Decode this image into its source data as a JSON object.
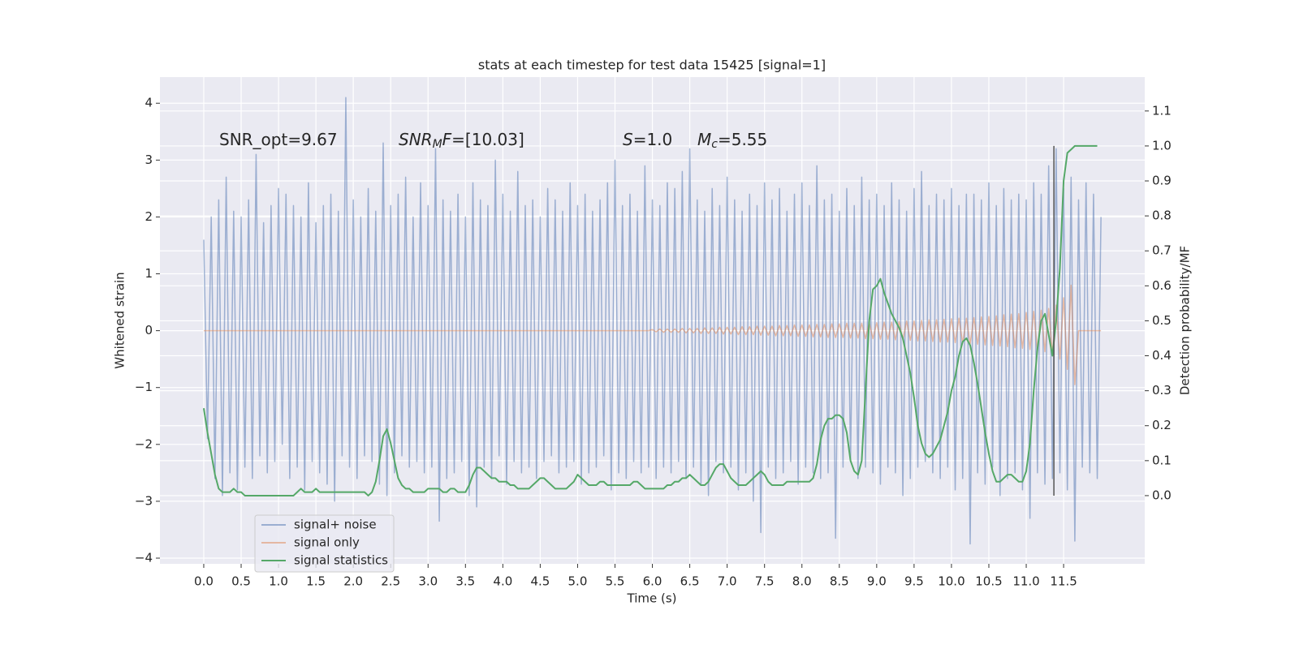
{
  "chart_data": {
    "type": "line",
    "title": "stats at each timestep for test data 15425 [signal=1]",
    "x_label": "Time (s)",
    "y_label": "Whitened strain",
    "y2_label": "Detection probability/MF",
    "xlim": [
      -0.586,
      12.585
    ],
    "ylim": [
      -4.1,
      4.46
    ],
    "y2lim": [
      -0.195,
      1.197
    ],
    "xticks": [
      {
        "value": 0,
        "label": "0.0"
      },
      0.5,
      {
        "value": 1,
        "label": "1.0"
      },
      1.5,
      {
        "value": 2,
        "label": "2.0"
      },
      2.5,
      {
        "value": 3,
        "label": "3.0"
      },
      3.5,
      {
        "value": 4,
        "label": "4.0"
      },
      4.5,
      {
        "value": 5,
        "label": "5.0"
      },
      5.5,
      {
        "value": 6,
        "label": "6.0"
      },
      6.5,
      {
        "value": 7,
        "label": "7.0"
      },
      7.5,
      {
        "value": 8,
        "label": "8.0"
      },
      8.5,
      {
        "value": 9,
        "label": "9.0"
      },
      9.5,
      {
        "value": 10,
        "label": "10.0"
      },
      10.5,
      {
        "value": 11,
        "label": "11.0"
      },
      11.5
    ],
    "yticks": [
      {
        "value": -4,
        "label": "−4"
      },
      {
        "value": -3,
        "label": "−3"
      },
      {
        "value": -2,
        "label": "−2"
      },
      {
        "value": -1,
        "label": "−1"
      },
      0,
      1,
      2,
      3,
      4
    ],
    "y2ticks": [
      {
        "value": 0,
        "label": "0.0"
      },
      0.1,
      0.2,
      0.3,
      0.4,
      0.5,
      0.6,
      0.7,
      0.8,
      0.9,
      {
        "value": 1,
        "label": "1.0"
      },
      1.1
    ],
    "grid": true,
    "legend_position": "lower left",
    "annotations": [
      [
        {
          "text": "SNR_opt=9.67"
        }
      ],
      [
        {
          "text": "SNR",
          "italic": true
        },
        {
          "text": "M",
          "italic": true,
          "sub": true
        },
        {
          "text": "F",
          "italic": true
        },
        {
          "text": "=[10.03]"
        }
      ],
      [
        {
          "text": "S",
          "italic": true
        },
        {
          "text": "=1.0"
        }
      ],
      [
        {
          "text": "M",
          "italic": true
        },
        {
          "text": "c",
          "italic": true,
          "sub": true
        },
        {
          "text": "=5.55"
        }
      ]
    ],
    "vline": {
      "x": 11.37,
      "ymin": 0,
      "ymax": 1,
      "axis": "y2",
      "color": "#555555"
    },
    "x": [
      0,
      0.05,
      0.1,
      0.15,
      0.2,
      0.25,
      0.3,
      0.35,
      0.4,
      0.45,
      0.5,
      0.55,
      0.6,
      0.65,
      0.7,
      0.75,
      0.8,
      0.85,
      0.9,
      0.95,
      1,
      1.05,
      1.1,
      1.15,
      1.2,
      1.25,
      1.3,
      1.35,
      1.4,
      1.45,
      1.5,
      1.55,
      1.6,
      1.65,
      1.7,
      1.75,
      1.8,
      1.85,
      1.9,
      1.95,
      2,
      2.05,
      2.1,
      2.15,
      2.2,
      2.25,
      2.3,
      2.35,
      2.4,
      2.45,
      2.5,
      2.55,
      2.6,
      2.65,
      2.7,
      2.75,
      2.8,
      2.85,
      2.9,
      2.95,
      3,
      3.05,
      3.1,
      3.15,
      3.2,
      3.25,
      3.3,
      3.35,
      3.4,
      3.45,
      3.5,
      3.55,
      3.6,
      3.65,
      3.7,
      3.75,
      3.8,
      3.85,
      3.9,
      3.95,
      4,
      4.05,
      4.1,
      4.15,
      4.2,
      4.25,
      4.3,
      4.35,
      4.4,
      4.45,
      4.5,
      4.55,
      4.6,
      4.65,
      4.7,
      4.75,
      4.8,
      4.85,
      4.9,
      4.95,
      5,
      5.05,
      5.1,
      5.15,
      5.2,
      5.25,
      5.3,
      5.35,
      5.4,
      5.45,
      5.5,
      5.55,
      5.6,
      5.65,
      5.7,
      5.75,
      5.8,
      5.85,
      5.9,
      5.95,
      6,
      6.05,
      6.1,
      6.15,
      6.2,
      6.25,
      6.3,
      6.35,
      6.4,
      6.45,
      6.5,
      6.55,
      6.6,
      6.65,
      6.7,
      6.75,
      6.8,
      6.85,
      6.9,
      6.95,
      7,
      7.05,
      7.1,
      7.15,
      7.2,
      7.25,
      7.3,
      7.35,
      7.4,
      7.45,
      7.5,
      7.55,
      7.6,
      7.65,
      7.7,
      7.75,
      7.8,
      7.85,
      7.9,
      7.95,
      8,
      8.05,
      8.1,
      8.15,
      8.2,
      8.25,
      8.3,
      8.35,
      8.4,
      8.45,
      8.5,
      8.55,
      8.6,
      8.65,
      8.7,
      8.75,
      8.8,
      8.85,
      8.9,
      8.95,
      9,
      9.05,
      9.1,
      9.15,
      9.2,
      9.25,
      9.3,
      9.35,
      9.4,
      9.45,
      9.5,
      9.55,
      9.6,
      9.65,
      9.7,
      9.75,
      9.8,
      9.85,
      9.9,
      9.95,
      10,
      10.05,
      10.1,
      10.15,
      10.2,
      10.25,
      10.3,
      10.35,
      10.4,
      10.45,
      10.5,
      10.55,
      10.6,
      10.65,
      10.7,
      10.75,
      10.8,
      10.85,
      10.9,
      10.95,
      11,
      11.05,
      11.1,
      11.15,
      11.2,
      11.25,
      11.3,
      11.35,
      11.4,
      11.45,
      11.5,
      11.55,
      11.6,
      11.65,
      11.7,
      11.75,
      11.8,
      11.85,
      11.9,
      11.95,
      12
    ],
    "series": [
      {
        "name": "signal+ noise",
        "color": "#4c72b0",
        "alpha": 0.5,
        "values": [
          1.6,
          -1.9,
          2.0,
          -2.6,
          2.3,
          -2.9,
          2.7,
          -2.5,
          2.1,
          -2.8,
          2.0,
          -2.4,
          2.3,
          -2.6,
          3.1,
          -2.2,
          1.9,
          -2.5,
          2.2,
          -2.3,
          2.5,
          -2.0,
          2.4,
          -2.6,
          2.2,
          -2.4,
          2.0,
          -2.8,
          2.6,
          -2.3,
          1.9,
          -2.5,
          2.2,
          -2.7,
          2.4,
          -3.0,
          2.1,
          -2.2,
          4.1,
          -2.4,
          2.3,
          -2.6,
          2.0,
          -2.2,
          2.5,
          -2.3,
          2.1,
          -2.7,
          3.3,
          -2.9,
          2.2,
          -2.5,
          2.4,
          -2.2,
          2.7,
          -2.4,
          2.0,
          -2.3,
          2.6,
          -2.5,
          2.2,
          -2.4,
          3.2,
          -3.35,
          2.3,
          -2.6,
          2.1,
          -2.5,
          2.4,
          -2.3,
          2.0,
          -2.9,
          2.6,
          -3.1,
          2.3,
          -2.4,
          2.2,
          -2.6,
          3.0,
          -2.2,
          2.4,
          -2.7,
          2.1,
          -2.3,
          2.8,
          -2.5,
          2.2,
          -2.4,
          2.3,
          -2.6,
          2.0,
          -2.3,
          2.5,
          -2.2,
          2.3,
          -2.5,
          2.1,
          -2.4,
          2.6,
          -2.3,
          2.2,
          -2.7,
          2.4,
          -2.5,
          2.1,
          -2.4,
          2.3,
          -2.2,
          2.6,
          -2.8,
          3.0,
          -2.5,
          2.2,
          -2.6,
          2.4,
          -2.3,
          2.1,
          -2.5,
          2.9,
          -2.4,
          2.3,
          -2.6,
          2.2,
          -2.4,
          2.6,
          -2.5,
          2.5,
          -2.3,
          2.8,
          -2.6,
          3.2,
          -2.4,
          2.3,
          -2.7,
          2.1,
          -2.9,
          2.5,
          -2.3,
          2.2,
          -2.5,
          2.7,
          -2.4,
          2.3,
          -2.8,
          2.1,
          -2.5,
          2.4,
          -3.0,
          2.2,
          -3.55,
          2.6,
          -2.4,
          2.3,
          -2.6,
          2.5,
          -2.5,
          2.1,
          -2.3,
          2.4,
          -2.7,
          2.6,
          -2.4,
          2.2,
          -2.5,
          2.9,
          -2.6,
          2.3,
          -2.5,
          2.4,
          -3.65,
          2.1,
          -2.4,
          2.5,
          -2.3,
          2.2,
          -2.6,
          2.7,
          -2.4,
          2.3,
          -2.5,
          2.4,
          -2.7,
          2.2,
          -2.4,
          2.6,
          -2.5,
          2.3,
          -2.9,
          2.1,
          -2.6,
          2.5,
          -2.4,
          2.8,
          -2.3,
          2.2,
          -2.5,
          2.4,
          -2.6,
          2.3,
          -2.4,
          2.5,
          -2.8,
          2.2,
          -2.6,
          2.4,
          -3.75,
          2.4,
          -2.5,
          2.3,
          -2.7,
          2.6,
          -2.4,
          2.2,
          -2.9,
          2.5,
          -2.6,
          2.3,
          -2.5,
          2.4,
          -2.8,
          2.3,
          -3.3,
          2.6,
          -2.5,
          2.4,
          -2.7,
          2.9,
          -2.6,
          3.2,
          -2.5,
          2.5,
          -2.8,
          2.7,
          -3.7,
          2.3,
          -2.4,
          2.6,
          -2.5,
          2.4,
          -2.6,
          2.0
        ]
      },
      {
        "name": "signal only",
        "color": "#dd8452",
        "alpha": 0.5,
        "values": [
          0,
          0,
          0,
          0,
          0,
          0,
          0,
          0,
          0,
          0,
          0,
          0,
          0,
          0,
          0,
          0,
          0,
          0,
          0,
          0,
          0,
          0,
          0,
          0,
          0,
          0,
          0,
          0,
          0,
          0,
          0,
          0,
          0,
          0,
          0,
          0,
          0,
          0,
          0,
          0,
          0,
          0,
          0,
          0,
          0,
          0,
          0,
          0,
          0,
          0,
          0,
          0,
          0,
          0,
          0,
          0,
          0,
          0,
          0,
          0,
          0,
          0,
          0,
          0,
          0,
          0,
          0,
          0,
          0,
          0,
          0,
          0,
          0,
          0,
          0,
          0,
          0,
          0,
          0,
          0,
          0,
          0,
          0,
          0,
          0,
          0,
          0,
          0,
          0,
          0,
          0,
          0,
          0,
          0,
          0,
          0,
          0,
          0,
          0,
          0,
          0,
          0,
          0,
          0,
          0,
          0,
          0,
          0,
          0,
          0,
          0,
          0,
          0,
          0,
          0,
          0,
          0,
          0,
          0,
          0,
          0.02,
          -0.02,
          0.03,
          -0.03,
          0.03,
          -0.03,
          0.03,
          -0.03,
          0.04,
          -0.04,
          0.04,
          -0.04,
          0.04,
          -0.05,
          0.05,
          -0.05,
          0.05,
          -0.05,
          0.06,
          -0.06,
          0.06,
          -0.06,
          0.06,
          -0.07,
          0.07,
          -0.07,
          0.07,
          -0.07,
          0.08,
          -0.08,
          0.08,
          -0.08,
          0.08,
          -0.09,
          0.09,
          -0.09,
          0.09,
          -0.09,
          0.1,
          -0.1,
          0.1,
          -0.1,
          0.1,
          -0.11,
          0.11,
          -0.11,
          0.11,
          -0.12,
          0.12,
          -0.12,
          0.12,
          -0.12,
          0.13,
          -0.13,
          0.13,
          -0.13,
          0.13,
          -0.14,
          0.14,
          -0.14,
          0.14,
          -0.15,
          0.15,
          -0.15,
          0.15,
          -0.16,
          0.16,
          -0.16,
          0.17,
          -0.17,
          0.17,
          -0.18,
          0.18,
          -0.18,
          0.19,
          -0.19,
          0.19,
          -0.2,
          0.2,
          -0.2,
          0.21,
          -0.21,
          0.22,
          -0.22,
          0.22,
          -0.23,
          0.23,
          -0.24,
          0.24,
          -0.25,
          0.25,
          -0.26,
          0.26,
          -0.27,
          0.28,
          -0.28,
          0.29,
          -0.3,
          0.3,
          -0.31,
          0.32,
          -0.33,
          0.34,
          -0.35,
          0.36,
          -0.37,
          0.39,
          -0.42,
          0.45,
          -0.5,
          0.58,
          -0.68,
          0.8,
          -0.95,
          0,
          0,
          0,
          0,
          0,
          0,
          0
        ]
      },
      {
        "name": "signal statistics",
        "color": "#55a868",
        "alpha": 1,
        "axis": "y2",
        "values": [
          0.25,
          0.18,
          0.12,
          0.06,
          0.02,
          0.01,
          0.01,
          0.01,
          0.02,
          0.01,
          0.01,
          0.0,
          0.0,
          0.0,
          0.0,
          0.0,
          0.0,
          0.0,
          0.0,
          0.0,
          0.0,
          0.0,
          0.0,
          0.0,
          0.0,
          0.01,
          0.02,
          0.01,
          0.01,
          0.01,
          0.02,
          0.01,
          0.01,
          0.01,
          0.01,
          0.01,
          0.01,
          0.01,
          0.01,
          0.01,
          0.01,
          0.01,
          0.01,
          0.01,
          0.0,
          0.01,
          0.04,
          0.1,
          0.17,
          0.19,
          0.15,
          0.1,
          0.05,
          0.03,
          0.02,
          0.02,
          0.01,
          0.01,
          0.01,
          0.01,
          0.02,
          0.02,
          0.02,
          0.02,
          0.01,
          0.01,
          0.02,
          0.02,
          0.01,
          0.01,
          0.01,
          0.03,
          0.06,
          0.08,
          0.08,
          0.07,
          0.06,
          0.05,
          0.05,
          0.04,
          0.04,
          0.04,
          0.03,
          0.03,
          0.02,
          0.02,
          0.02,
          0.02,
          0.03,
          0.04,
          0.05,
          0.05,
          0.04,
          0.03,
          0.02,
          0.02,
          0.02,
          0.02,
          0.03,
          0.04,
          0.06,
          0.05,
          0.04,
          0.03,
          0.03,
          0.03,
          0.04,
          0.04,
          0.03,
          0.03,
          0.03,
          0.03,
          0.03,
          0.03,
          0.03,
          0.04,
          0.04,
          0.03,
          0.02,
          0.02,
          0.02,
          0.02,
          0.02,
          0.02,
          0.03,
          0.03,
          0.04,
          0.04,
          0.05,
          0.05,
          0.06,
          0.05,
          0.04,
          0.03,
          0.03,
          0.04,
          0.06,
          0.08,
          0.09,
          0.09,
          0.07,
          0.05,
          0.04,
          0.03,
          0.03,
          0.03,
          0.04,
          0.05,
          0.06,
          0.07,
          0.06,
          0.04,
          0.03,
          0.03,
          0.03,
          0.03,
          0.04,
          0.04,
          0.04,
          0.04,
          0.04,
          0.04,
          0.04,
          0.05,
          0.09,
          0.16,
          0.2,
          0.22,
          0.22,
          0.23,
          0.23,
          0.22,
          0.18,
          0.1,
          0.07,
          0.06,
          0.1,
          0.3,
          0.5,
          0.59,
          0.6,
          0.62,
          0.58,
          0.55,
          0.52,
          0.5,
          0.48,
          0.45,
          0.4,
          0.35,
          0.28,
          0.2,
          0.15,
          0.12,
          0.11,
          0.12,
          0.14,
          0.16,
          0.2,
          0.24,
          0.3,
          0.34,
          0.4,
          0.44,
          0.45,
          0.43,
          0.38,
          0.32,
          0.25,
          0.18,
          0.12,
          0.07,
          0.04,
          0.04,
          0.05,
          0.06,
          0.06,
          0.05,
          0.04,
          0.04,
          0.07,
          0.15,
          0.3,
          0.42,
          0.5,
          0.52,
          0.46,
          0.4,
          0.5,
          0.65,
          0.9,
          0.98,
          0.99,
          1.0,
          1.0,
          1.0,
          1.0,
          1.0,
          1.0,
          1.0,
          null
        ]
      }
    ]
  }
}
